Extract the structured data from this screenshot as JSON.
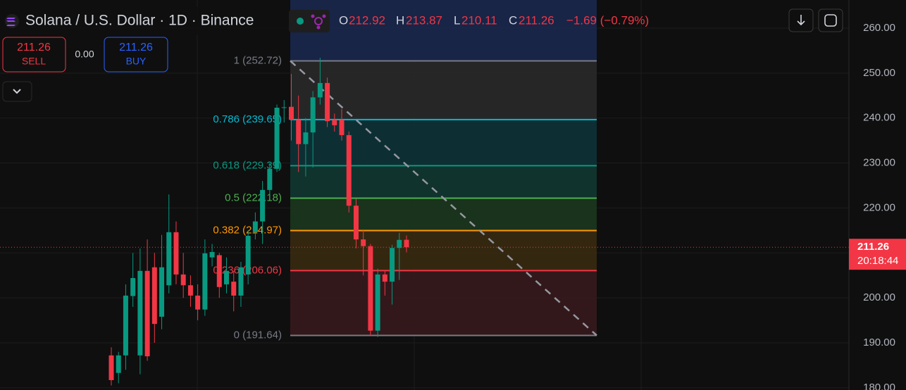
{
  "chart_data": {
    "type": "candlestick",
    "title": "Solana / U.S. Dollar · 1D · Binance",
    "ohlc_labels": {
      "open": "O",
      "high": "H",
      "low": "L",
      "close": "C"
    },
    "ohlc_values": {
      "open": 212.92,
      "high": 213.87,
      "low": 210.11,
      "close": 211.26
    },
    "change": "−1.69 (−0.79%)",
    "sell": {
      "price": 211.26,
      "label": "SELL"
    },
    "spread": "0.00",
    "buy": {
      "price": 211.26,
      "label": "BUY"
    },
    "last_price": 211.26,
    "countdown": "20:18:44",
    "up_color": "#089981",
    "down_color": "#f23645",
    "categories": [
      null,
      null,
      null,
      null,
      null,
      null,
      null,
      null,
      null,
      null,
      null,
      null,
      null,
      null,
      null,
      null,
      null,
      null,
      null,
      null,
      null,
      null,
      null,
      null,
      null,
      null,
      null,
      null,
      null,
      null,
      null,
      null,
      null,
      null,
      null,
      null,
      null,
      null,
      null,
      null,
      null,
      null
    ],
    "open": [
      187.2,
      183.3,
      187.2,
      200.4,
      187.2,
      206,
      206.8,
      195.8,
      202.8,
      214.6,
      205.2,
      202.8,
      200.5,
      197.4,
      209.0,
      209.5,
      203,
      203.6,
      200.5,
      205.2,
      214.6,
      217,
      224,
      228.7,
      242.3,
      242.5,
      239.6,
      234.2,
      236.8,
      244.6,
      247.8,
      239.6,
      239.6,
      236.2,
      220.5,
      213,
      211.5,
      192.7,
      205.2,
      203.6,
      211.1,
      212.92
    ],
    "high": [
      189,
      188,
      203,
      210,
      211,
      213,
      210,
      214,
      223,
      217,
      210,
      205,
      203,
      213,
      212,
      210,
      209,
      206,
      208,
      215,
      219,
      226,
      230,
      243,
      244,
      249.8,
      245,
      240,
      246,
      253.4,
      249,
      241,
      242,
      237,
      222,
      215,
      212,
      206.5,
      206,
      211.8,
      214.5,
      213.87
    ],
    "low": [
      180.5,
      181,
      184,
      198,
      183,
      186,
      190,
      193,
      201,
      203,
      200,
      198,
      195,
      196,
      207,
      200,
      201,
      197,
      198,
      203,
      213,
      212,
      222,
      228,
      239,
      235,
      228,
      227,
      229,
      243,
      238,
      237,
      235,
      219,
      211,
      205,
      191.6,
      191.3,
      200.5,
      198.5,
      204,
      210.11
    ],
    "close": [
      181.7,
      187.2,
      200.5,
      204.4,
      206,
      187,
      194.2,
      206.8,
      214.6,
      205.2,
      202.8,
      200.5,
      197.4,
      209.9,
      210.2,
      202.4,
      206,
      200.5,
      206.8,
      213.8,
      217,
      224,
      228.7,
      242.3,
      242.4,
      239.6,
      234.2,
      236.8,
      244.6,
      247.8,
      239.3,
      238.4,
      236.2,
      220.5,
      213,
      211.5,
      192.7,
      205.2,
      203.6,
      211.1,
      212.9,
      211.26
    ],
    "ylim": [
      179.5,
      266.26
    ],
    "yticks": [
      {
        "value": 180,
        "label": "180.00"
      },
      {
        "value": 190,
        "label": "190.00"
      },
      {
        "value": 200,
        "label": "200.00"
      },
      {
        "value": 210,
        "label": "210.00"
      },
      {
        "value": 220,
        "label": "220.00"
      },
      {
        "value": 230,
        "label": "230.00"
      },
      {
        "value": 240,
        "label": "240.00"
      },
      {
        "value": 250,
        "label": "250.00"
      },
      {
        "value": 260,
        "label": "260.00"
      }
    ],
    "fib_levels": [
      {
        "value": 252.72,
        "label": "1 (252.72)",
        "color": "#787b86",
        "fill": "#2a2a2a"
      },
      {
        "value": 239.65,
        "label": "0.786 (239.65)",
        "color": "#00bcd4",
        "fill": "#0d3539"
      },
      {
        "value": 229.39,
        "label": "0.618 (229.39)",
        "color": "#089981",
        "fill": "#103a32"
      },
      {
        "value": 222.18,
        "label": "0.5 (222.18)",
        "color": "#4caf50",
        "fill": "#1c3a1f"
      },
      {
        "value": 214.97,
        "label": "0.382 (214.97)",
        "color": "#ff9800",
        "fill": "#3b2c10"
      },
      {
        "value": 206.06,
        "label": "0.236 (206.06)",
        "color": "#f23645",
        "fill": "#3a1a1d"
      },
      {
        "value": 191.64,
        "label": "0 (191.64)",
        "color": "#787b86",
        "fill": "#3a1a1d"
      }
    ]
  }
}
